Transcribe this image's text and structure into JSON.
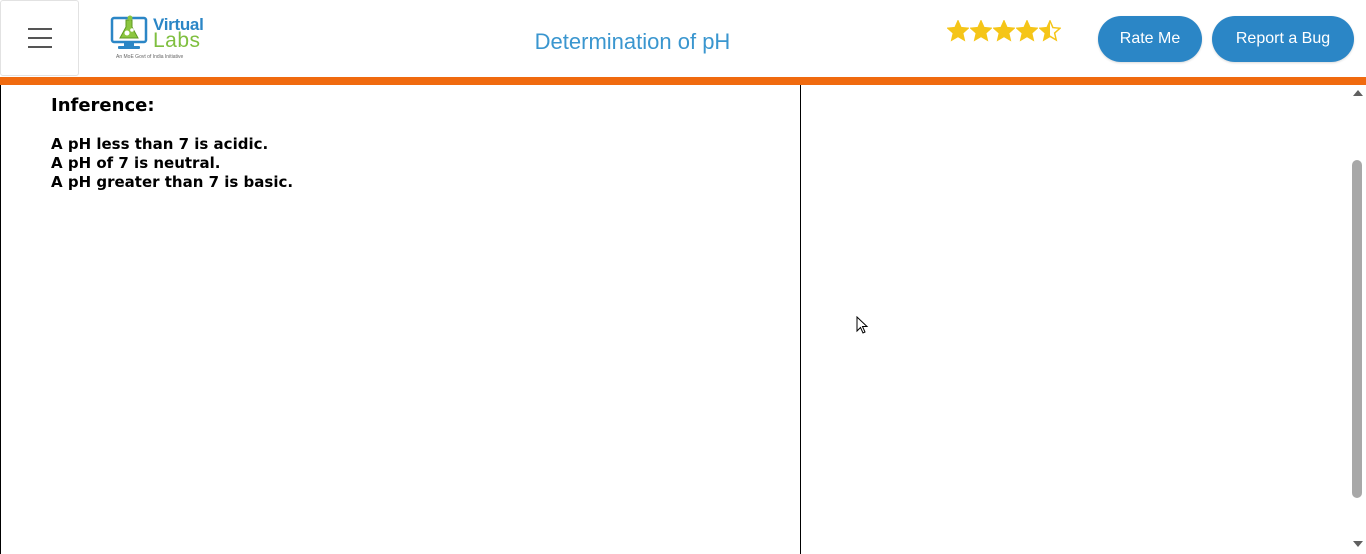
{
  "header": {
    "title": "Determination of pH",
    "logo": {
      "name_top": "Virtual",
      "name_bottom": "Labs",
      "tagline": "An MoE Govt of India Initiative"
    },
    "rating": 4.5,
    "rate_label": "Rate Me",
    "bug_label": "Report a Bug",
    "colors": {
      "accent": "#2b86c6",
      "title": "#3a96cf",
      "bar": "#f06a0f",
      "star": "#f5c518"
    }
  },
  "content": {
    "heading": "Inference:",
    "lines": [
      "A pH less than 7 is acidic.",
      "A pH of 7 is neutral.",
      "A pH greater than 7 is basic."
    ]
  },
  "icons": {
    "menu": "hamburger-icon",
    "star": "star-icon",
    "cursor": "mouse-pointer-icon"
  }
}
